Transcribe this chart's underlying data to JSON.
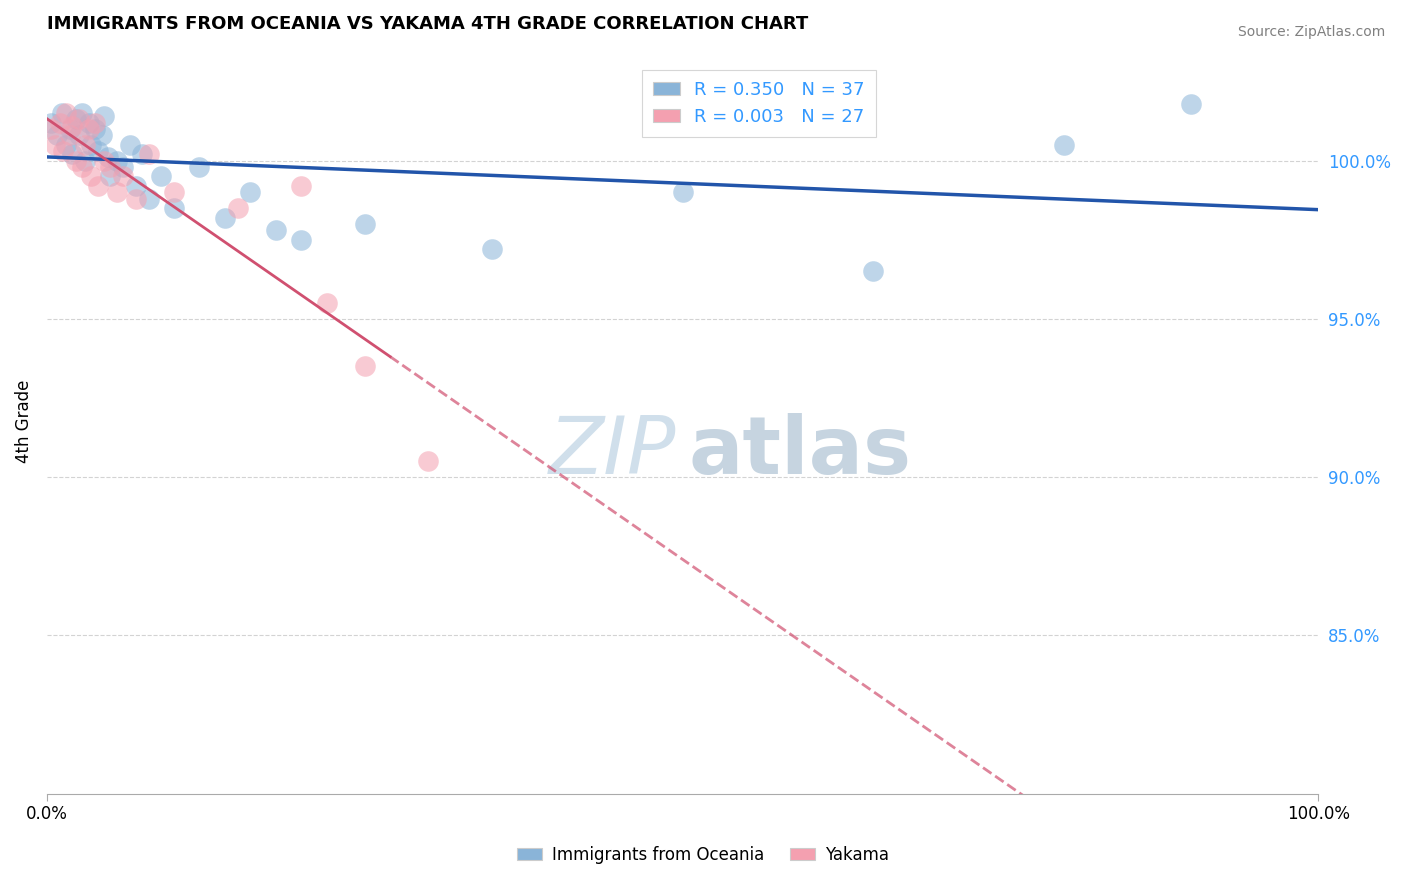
{
  "title": "IMMIGRANTS FROM OCEANIA VS YAKAMA 4TH GRADE CORRELATION CHART",
  "source_text": "Source: ZipAtlas.com",
  "ylabel": "4th Grade",
  "xlim": [
    0.0,
    100.0
  ],
  "ylim": [
    80.0,
    103.5
  ],
  "y_tick_values": [
    85.0,
    90.0,
    95.0,
    100.0
  ],
  "y_tick_labels": [
    "85.0%",
    "90.0%",
    "95.0%",
    "100.0%"
  ],
  "legend_blue_label": "Immigrants from Oceania",
  "legend_pink_label": "Yakama",
  "R_blue": 0.35,
  "N_blue": 37,
  "R_pink": 0.003,
  "N_pink": 27,
  "blue_color": "#8ab4d8",
  "pink_color": "#f4a0b0",
  "blue_line_color": "#2255aa",
  "pink_line_color": "#d05070",
  "blue_scatter_x": [
    0.3,
    0.8,
    1.2,
    1.5,
    1.8,
    2.0,
    2.3,
    2.5,
    2.8,
    3.0,
    3.3,
    3.5,
    3.8,
    4.0,
    4.3,
    4.5,
    4.8,
    5.0,
    5.5,
    6.0,
    6.5,
    7.0,
    7.5,
    8.0,
    9.0,
    10.0,
    12.0,
    14.0,
    16.0,
    18.0,
    20.0,
    25.0,
    35.0,
    50.0,
    65.0,
    80.0,
    90.0
  ],
  "blue_scatter_y": [
    101.2,
    100.8,
    101.5,
    100.5,
    101.0,
    100.2,
    101.3,
    100.8,
    101.5,
    100.0,
    101.2,
    100.5,
    101.0,
    100.3,
    100.8,
    101.4,
    100.1,
    99.5,
    100.0,
    99.8,
    100.5,
    99.2,
    100.2,
    98.8,
    99.5,
    98.5,
    99.8,
    98.2,
    99.0,
    97.8,
    97.5,
    98.0,
    97.2,
    99.0,
    96.5,
    100.5,
    101.8
  ],
  "pink_scatter_x": [
    0.3,
    0.6,
    1.0,
    1.3,
    1.5,
    1.8,
    2.0,
    2.3,
    2.5,
    2.8,
    3.0,
    3.3,
    3.5,
    3.8,
    4.0,
    4.5,
    5.0,
    5.5,
    6.0,
    7.0,
    8.0,
    10.0,
    15.0,
    20.0,
    22.0,
    25.0,
    30.0
  ],
  "pink_scatter_y": [
    101.0,
    100.5,
    101.2,
    100.3,
    101.5,
    100.8,
    101.1,
    100.0,
    101.3,
    99.8,
    100.5,
    101.0,
    99.5,
    101.2,
    99.2,
    100.0,
    99.8,
    99.0,
    99.5,
    98.8,
    100.2,
    99.0,
    98.5,
    99.2,
    95.5,
    93.5,
    90.5
  ],
  "pink_line_x_solid_end": 27.0,
  "watermark_zip": "ZIP",
  "watermark_atlas": "atlas"
}
